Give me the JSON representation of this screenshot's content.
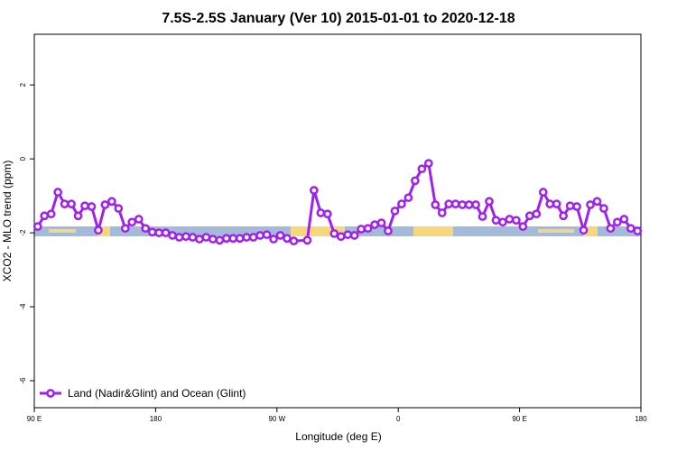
{
  "chart_data": {
    "type": "line",
    "title": "7.5S-2.5S January (Ver 10)   2015-01-01 to 2020-12-18",
    "x_label": "Longitude (deg E)",
    "y_label": "XCO2 - MLO trend (ppm)",
    "xlim": [
      90,
      540
    ],
    "ylim": [
      -6.73,
      3.37
    ],
    "xticks": [
      {
        "value": 90,
        "label": "90 E"
      },
      {
        "value": 180,
        "label": "180"
      },
      {
        "value": 270,
        "label": "90 W"
      },
      {
        "value": 360,
        "label": "0"
      },
      {
        "value": 450,
        "label": "90 E"
      },
      {
        "value": 540,
        "label": "180"
      }
    ],
    "yticks": [
      -6,
      -4,
      -2,
      0,
      2
    ],
    "legend": "bottom-left",
    "x": [
      92.5,
      97.5,
      102.5,
      107.5,
      112.5,
      117.5,
      122.5,
      127.5,
      132.5,
      137.5,
      142.5,
      147.5,
      152.5,
      157.5,
      162.5,
      167.5,
      172.5,
      177.5,
      182.5,
      187.5,
      192.5,
      197.5,
      202.5,
      207.5,
      212.5,
      217.5,
      222.5,
      227.5,
      232.5,
      237.5,
      242.5,
      247.5,
      252.5,
      257.5,
      262.5,
      267.5,
      272.5,
      277.5,
      282.5,
      292.5,
      297.5,
      302.5,
      307.5,
      312.5,
      317.5,
      322.5,
      327.5,
      332.5,
      337.5,
      342.5,
      347.5,
      352.5,
      357.5,
      362.5,
      367.5,
      372.5,
      377.5,
      382.5,
      387.5,
      392.5,
      397.5,
      402.5,
      407.5,
      412.5,
      417.5,
      422.5,
      427.5,
      432.5,
      437.5,
      442.5,
      447.5,
      452.5,
      457.5,
      462.5,
      467.5,
      472.5,
      477.5,
      482.5,
      487.5,
      492.5,
      497.5,
      502.5,
      507.5,
      512.5,
      517.5,
      522.5,
      527.5,
      532.5,
      537.5
    ],
    "series": [
      {
        "name": "Land (Nadir&Glint) and Ocean (Glint)",
        "color": "#a020f0",
        "values": [
          -1.83,
          -1.54,
          -1.49,
          -0.9,
          -1.22,
          -1.22,
          -1.54,
          -1.27,
          -1.29,
          -1.93,
          -1.24,
          -1.15,
          -1.34,
          -1.88,
          -1.71,
          -1.63,
          -1.88,
          -1.98,
          -2.0,
          -2.0,
          -2.07,
          -2.12,
          -2.1,
          -2.12,
          -2.17,
          -2.12,
          -2.17,
          -2.2,
          -2.15,
          -2.15,
          -2.15,
          -2.12,
          -2.12,
          -2.07,
          -2.05,
          -2.17,
          -2.07,
          -2.15,
          -2.22,
          -2.2,
          -0.85,
          -1.46,
          -1.49,
          -2.02,
          -2.1,
          -2.05,
          -2.07,
          -1.9,
          -1.88,
          -1.78,
          -1.73,
          -1.95,
          -1.41,
          -1.22,
          -1.05,
          -0.59,
          -0.27,
          -0.12,
          -1.24,
          -1.46,
          -1.22,
          -1.22,
          -1.24,
          -1.24,
          -1.24,
          -1.56,
          -1.15,
          -1.66,
          -1.71,
          -1.63,
          -1.66,
          -1.83,
          -1.54,
          -1.49,
          -0.9,
          -1.22,
          -1.22,
          -1.54,
          -1.27,
          -1.29,
          -1.93,
          -1.24,
          -1.15,
          -1.34,
          -1.88,
          -1.71,
          -1.63,
          -1.88,
          -1.95
        ]
      }
    ]
  }
}
